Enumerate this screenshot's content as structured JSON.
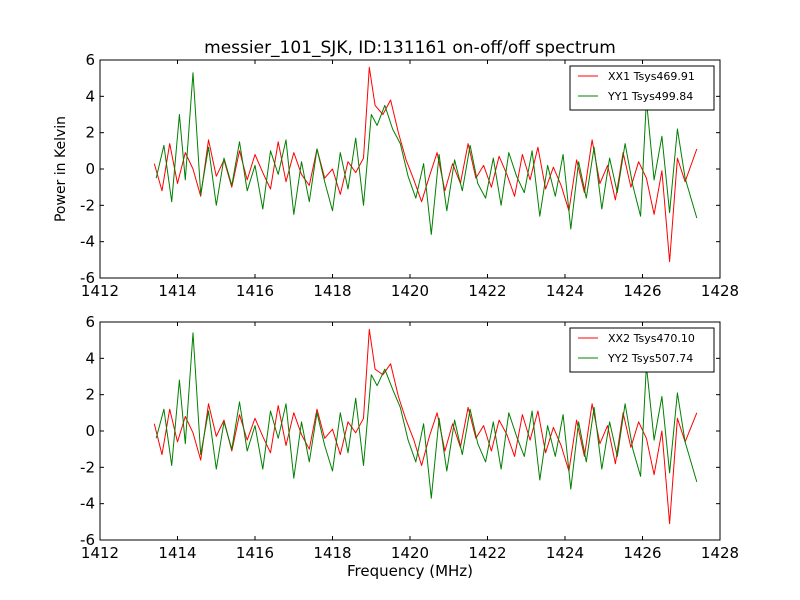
{
  "chart_data": [
    {
      "type": "line",
      "title": "messier_101_SJK, ID:131161 on-off/off spectrum",
      "xlabel": "",
      "ylabel": "Power in Kelvin",
      "xlim": [
        1412,
        1428
      ],
      "ylim": [
        -6,
        6
      ],
      "xticks": [
        1412,
        1414,
        1416,
        1418,
        1420,
        1422,
        1424,
        1426,
        1428
      ],
      "yticks": [
        -6,
        -4,
        -2,
        0,
        2,
        4,
        6
      ],
      "grid": false,
      "legend_position": "top-right",
      "series": [
        {
          "name": "XX1 Tsys469.91",
          "color": "#ff0000",
          "x": [
            1413.4,
            1413.6,
            1413.8,
            1414.0,
            1414.2,
            1414.4,
            1414.6,
            1414.8,
            1415.0,
            1415.2,
            1415.4,
            1415.6,
            1415.8,
            1416.0,
            1416.2,
            1416.4,
            1416.6,
            1416.8,
            1417.0,
            1417.2,
            1417.4,
            1417.6,
            1417.8,
            1418.0,
            1418.2,
            1418.4,
            1418.6,
            1418.8,
            1418.95,
            1419.1,
            1419.3,
            1419.5,
            1419.7,
            1419.9,
            1420.1,
            1420.3,
            1420.5,
            1420.7,
            1420.9,
            1421.1,
            1421.3,
            1421.5,
            1421.7,
            1421.9,
            1422.1,
            1422.3,
            1422.5,
            1422.7,
            1422.9,
            1423.1,
            1423.3,
            1423.5,
            1423.7,
            1423.9,
            1424.1,
            1424.3,
            1424.5,
            1424.7,
            1424.9,
            1425.1,
            1425.3,
            1425.5,
            1425.7,
            1425.9,
            1426.1,
            1426.3,
            1426.5,
            1426.7,
            1426.9,
            1427.1,
            1427.4
          ],
          "y": [
            0.3,
            -1.2,
            1.4,
            -0.8,
            0.9,
            0.0,
            -1.5,
            1.6,
            -0.4,
            0.5,
            -1.0,
            1.0,
            -0.6,
            0.8,
            -0.2,
            -1.1,
            1.5,
            -0.7,
            0.9,
            -0.3,
            -0.9,
            1.1,
            -0.5,
            0.0,
            -1.4,
            0.4,
            -0.2,
            0.6,
            5.6,
            3.5,
            3.0,
            3.8,
            2.0,
            0.5,
            -0.6,
            -1.8,
            -0.4,
            0.9,
            -1.2,
            0.3,
            -0.8,
            1.4,
            -0.5,
            0.2,
            -1.0,
            0.7,
            -0.3,
            -1.5,
            0.8,
            -0.6,
            1.2,
            -1.1,
            0.1,
            -0.9,
            -2.3,
            0.5,
            -1.3,
            1.6,
            -0.8,
            0.2,
            -1.7,
            0.9,
            -1.0,
            0.4,
            -0.5,
            -2.5,
            -0.1,
            -5.1,
            0.6,
            -0.7,
            1.1
          ]
        },
        {
          "name": "YY1 Tsys499.84",
          "color": "#008000",
          "x": [
            1413.45,
            1413.65,
            1413.85,
            1414.05,
            1414.2,
            1414.4,
            1414.6,
            1414.8,
            1415.0,
            1415.2,
            1415.4,
            1415.6,
            1415.8,
            1416.0,
            1416.2,
            1416.4,
            1416.6,
            1416.8,
            1417.0,
            1417.2,
            1417.4,
            1417.6,
            1417.8,
            1418.0,
            1418.2,
            1418.4,
            1418.6,
            1418.8,
            1419.0,
            1419.15,
            1419.35,
            1419.55,
            1419.75,
            1419.95,
            1420.15,
            1420.35,
            1420.55,
            1420.75,
            1420.95,
            1421.15,
            1421.35,
            1421.55,
            1421.75,
            1421.95,
            1422.15,
            1422.35,
            1422.55,
            1422.75,
            1422.95,
            1423.15,
            1423.35,
            1423.55,
            1423.75,
            1423.95,
            1424.15,
            1424.35,
            1424.55,
            1424.75,
            1424.95,
            1425.15,
            1425.35,
            1425.55,
            1425.75,
            1425.95,
            1426.1,
            1426.3,
            1426.5,
            1426.7,
            1426.9,
            1427.1,
            1427.4
          ],
          "y": [
            -0.5,
            1.3,
            -1.8,
            3.0,
            -0.6,
            5.3,
            -1.4,
            1.2,
            -2.0,
            0.6,
            -0.9,
            1.5,
            -1.2,
            0.2,
            -2.2,
            1.0,
            -0.3,
            1.6,
            -2.5,
            0.4,
            -1.8,
            1.1,
            -0.7,
            -2.3,
            0.9,
            -1.1,
            1.7,
            -2.0,
            3.0,
            2.4,
            3.5,
            2.2,
            1.4,
            -0.4,
            -1.6,
            0.3,
            -3.6,
            0.8,
            -2.3,
            0.5,
            -1.2,
            1.3,
            -0.8,
            -1.6,
            0.6,
            -2.0,
            0.9,
            -0.4,
            -1.3,
            1.0,
            -2.6,
            0.2,
            -1.5,
            0.8,
            -3.3,
            0.4,
            -1.6,
            1.2,
            -2.2,
            0.6,
            -1.3,
            1.4,
            -0.9,
            -2.6,
            3.8,
            -0.6,
            1.8,
            -2.4,
            2.2,
            -0.5,
            -2.7
          ]
        }
      ]
    },
    {
      "type": "line",
      "title": "",
      "xlabel": "Frequency (MHz)",
      "ylabel": "",
      "xlim": [
        1412,
        1428
      ],
      "ylim": [
        -6,
        6
      ],
      "xticks": [
        1412,
        1414,
        1416,
        1418,
        1420,
        1422,
        1424,
        1426,
        1428
      ],
      "yticks": [
        -6,
        -4,
        -2,
        0,
        2,
        4,
        6
      ],
      "grid": false,
      "legend_position": "top-right",
      "series": [
        {
          "name": "XX2 Tsys470.10",
          "color": "#ff0000",
          "x": [
            1413.4,
            1413.6,
            1413.8,
            1414.0,
            1414.2,
            1414.4,
            1414.6,
            1414.8,
            1415.0,
            1415.2,
            1415.4,
            1415.6,
            1415.8,
            1416.0,
            1416.2,
            1416.4,
            1416.6,
            1416.8,
            1417.0,
            1417.2,
            1417.4,
            1417.6,
            1417.8,
            1418.0,
            1418.2,
            1418.4,
            1418.6,
            1418.8,
            1418.95,
            1419.1,
            1419.3,
            1419.5,
            1419.7,
            1419.9,
            1420.1,
            1420.3,
            1420.5,
            1420.7,
            1420.9,
            1421.1,
            1421.3,
            1421.5,
            1421.7,
            1421.9,
            1422.1,
            1422.3,
            1422.5,
            1422.7,
            1422.9,
            1423.1,
            1423.3,
            1423.5,
            1423.7,
            1423.9,
            1424.1,
            1424.3,
            1424.5,
            1424.7,
            1424.9,
            1425.1,
            1425.3,
            1425.5,
            1425.7,
            1425.9,
            1426.1,
            1426.3,
            1426.5,
            1426.7,
            1426.9,
            1427.1,
            1427.4
          ],
          "y": [
            0.4,
            -1.3,
            1.2,
            -0.6,
            0.8,
            -0.1,
            -1.6,
            1.5,
            -0.3,
            0.6,
            -1.1,
            0.9,
            -0.5,
            0.7,
            -0.3,
            -1.2,
            1.4,
            -0.8,
            1.0,
            -0.2,
            -1.0,
            1.2,
            -0.4,
            0.1,
            -1.3,
            0.5,
            -0.1,
            0.7,
            5.6,
            3.4,
            3.1,
            3.7,
            1.9,
            0.6,
            -0.5,
            -1.9,
            -0.3,
            1.0,
            -1.1,
            0.4,
            -0.9,
            1.3,
            -0.4,
            0.3,
            -1.1,
            0.6,
            -0.2,
            -1.4,
            0.9,
            -0.5,
            1.1,
            -1.2,
            0.2,
            -0.8,
            -2.2,
            0.6,
            -1.4,
            1.5,
            -0.7,
            0.3,
            -1.8,
            1.0,
            -0.9,
            0.5,
            -0.4,
            -2.4,
            0.0,
            -5.1,
            0.7,
            -0.6,
            1.0
          ]
        },
        {
          "name": "YY2 Tsys507.74",
          "color": "#008000",
          "x": [
            1413.45,
            1413.65,
            1413.85,
            1414.05,
            1414.2,
            1414.4,
            1414.6,
            1414.8,
            1415.0,
            1415.2,
            1415.4,
            1415.6,
            1415.8,
            1416.0,
            1416.2,
            1416.4,
            1416.6,
            1416.8,
            1417.0,
            1417.2,
            1417.4,
            1417.6,
            1417.8,
            1418.0,
            1418.2,
            1418.4,
            1418.6,
            1418.8,
            1419.0,
            1419.15,
            1419.35,
            1419.55,
            1419.75,
            1419.95,
            1420.15,
            1420.35,
            1420.55,
            1420.75,
            1420.95,
            1421.15,
            1421.35,
            1421.55,
            1421.75,
            1421.95,
            1422.15,
            1422.35,
            1422.55,
            1422.75,
            1422.95,
            1423.15,
            1423.35,
            1423.55,
            1423.75,
            1423.95,
            1424.15,
            1424.35,
            1424.55,
            1424.75,
            1424.95,
            1425.15,
            1425.35,
            1425.55,
            1425.75,
            1425.95,
            1426.1,
            1426.3,
            1426.5,
            1426.7,
            1426.9,
            1427.1,
            1427.4
          ],
          "y": [
            -0.4,
            1.2,
            -1.9,
            2.8,
            -0.7,
            5.4,
            -1.3,
            1.1,
            -2.1,
            0.5,
            -1.0,
            1.6,
            -1.1,
            0.3,
            -2.1,
            1.1,
            -0.4,
            1.5,
            -2.6,
            0.5,
            -1.7,
            1.0,
            -0.8,
            -2.2,
            1.0,
            -1.2,
            1.8,
            -1.9,
            3.1,
            2.5,
            3.4,
            2.3,
            1.3,
            -0.5,
            -1.7,
            0.4,
            -3.7,
            0.7,
            -2.2,
            0.6,
            -1.3,
            1.2,
            -0.7,
            -1.7,
            0.5,
            -2.1,
            1.0,
            -0.3,
            -1.4,
            1.1,
            -2.7,
            0.3,
            -1.4,
            0.9,
            -3.2,
            0.5,
            -1.7,
            1.3,
            -2.1,
            0.5,
            -1.4,
            1.5,
            -1.0,
            -2.5,
            3.6,
            -0.5,
            1.9,
            -2.3,
            2.1,
            -0.6,
            -2.8
          ]
        }
      ]
    }
  ]
}
